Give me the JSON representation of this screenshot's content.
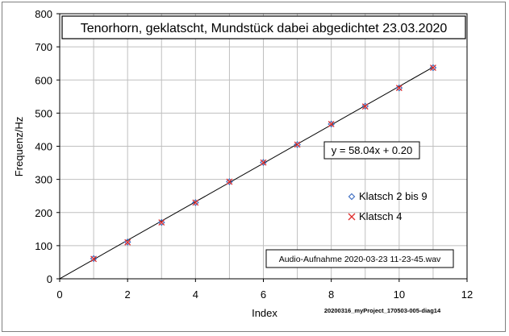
{
  "chart_data": {
    "type": "scatter",
    "title": "Tenorhorn, geklatscht, Mundstück dabei abgedichtet 23.03.2020",
    "xlabel": "Index",
    "ylabel": "Frequenz/Hz",
    "xlim": [
      0,
      12
    ],
    "ylim": [
      0,
      800
    ],
    "xticks": [
      0,
      2,
      4,
      6,
      8,
      10,
      12
    ],
    "yticks": [
      0,
      100,
      200,
      300,
      400,
      500,
      600,
      700,
      800
    ],
    "grid": true,
    "legend_position": "right",
    "series": [
      {
        "name": "Klatsch 2 bis 9",
        "marker": "diamond",
        "color": "#4472c4",
        "x": [
          1,
          2,
          3,
          4,
          5,
          6,
          7,
          8,
          9,
          10,
          11
        ],
        "y": [
          61,
          111,
          170,
          230,
          293,
          351,
          405,
          467,
          521,
          576,
          637
        ]
      },
      {
        "name": "Klatsch 4",
        "marker": "x",
        "color": "#e0302f",
        "x": [
          1,
          2,
          3,
          4,
          5,
          6,
          7,
          8,
          9,
          10,
          11
        ],
        "y": [
          60,
          110,
          170,
          230,
          293,
          351,
          405,
          467,
          520,
          576,
          637
        ]
      }
    ],
    "trendline": {
      "label": "y = 58.04x + 0.20",
      "slope": 58.04,
      "intercept": 0.2
    },
    "annotation": "Audio-Aufnahme 2020-03-23 11-23-45.wav",
    "footnote": "20200316_myProject_170503-005-diag14"
  }
}
